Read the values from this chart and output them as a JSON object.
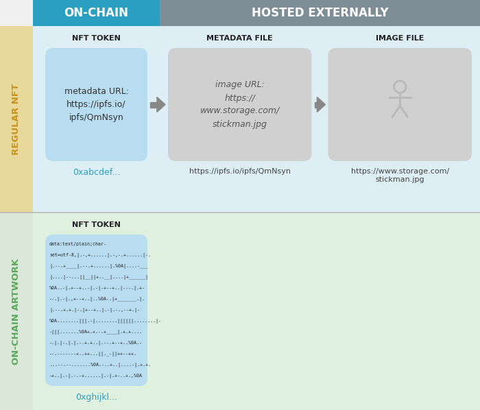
{
  "bg_color": "#f0f0f0",
  "header_onchain_color": "#2a9fc0",
  "header_hosted_color": "#7d8e96",
  "row1_label_bg": "#e8d99a",
  "row2_label_bg": "#d9e8d9",
  "row1_label_color": "#c8951a",
  "row2_label_color": "#5aaa5a",
  "row1_bg": "#deeef5",
  "row2_bg": "#dff0df",
  "box_blue_color": "#b8ddf0",
  "box_gray_color": "#d0d0d0",
  "header_text_color": "#ffffff",
  "title_top_onchain": "ON-CHAIN",
  "title_top_hosted": "HOSTED EXTERNALLY",
  "row1_side_label": "REGULAR NFT",
  "row2_side_label": "ON-CHAIN ARTWORK",
  "col1_label": "NFT TOKEN",
  "col2_label": "METADATA FILE",
  "col3_label": "IMAGE FILE",
  "box1_text": "metadata URL:\nhttps://ipfs.io/\nipfs/QmNsyn",
  "box2_text": "image URL:\nhttps://\nwww.storage.com/\nstickman.jpg",
  "box1_addr": "0xabcdef...",
  "box2_addr": "https://ipfs.io/ipfs/QmNsyn",
  "box3_addr": "https://www.storage.com/\nstickman.jpg",
  "box4_addr": "0xghijkl...",
  "arrow_color": "#888888",
  "encoded_lines": [
    "data:text/plain;char-",
    "set=utf-8,|.-,+......|.-,-.+......|-.",
    "|.--.+____|.--.+......|.%0A|....-___",
    "|....|--...||__||+..__|....|+______|",
    "%0A..-|.+--+..-|.-|-+--+..|---.|.+-",
    "--.|.-|.,+--+..|..%0A-.|+_______.|.",
    "|.--.+.+.|-.|+--+..|.-|.-.,--+.|-",
    "%0A........|||.-|........||||||........|-",
    "-|||.......%0A+.+.-.+____|.+.+....",
    "-.|.|-.|.|.-.+.+..|.--.+--+..%0A.-",
    "--.-------+..++...||._-||++--++.",
    "...--.--.......%0A.-..+..|....-|.+.+.",
    "-+..|.-|.-.-+......|.-|.+-..+.,%0A"
  ]
}
